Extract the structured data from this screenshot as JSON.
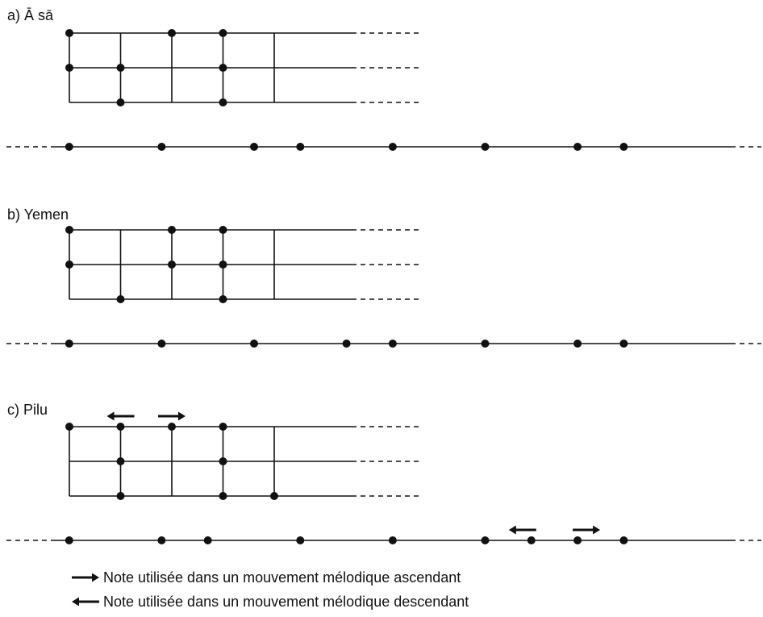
{
  "colors": {
    "ink": "#111111",
    "background": "#ffffff"
  },
  "sections": [
    {
      "label": "a) Ā sā",
      "grid": {
        "columns": 5,
        "rows": 3,
        "dots": [
          {
            "col": 0,
            "row": 0
          },
          {
            "col": 0,
            "row": 1
          },
          {
            "col": 1,
            "row": 1
          },
          {
            "col": 1,
            "row": 2
          },
          {
            "col": 2,
            "row": 0
          },
          {
            "col": 3,
            "row": 0
          },
          {
            "col": 3,
            "row": 1
          },
          {
            "col": 3,
            "row": 2
          }
        ],
        "arrows": []
      },
      "scale": {
        "dots": [
          1,
          3,
          5,
          6,
          8,
          10,
          12,
          13
        ],
        "arrows": []
      }
    },
    {
      "label": "b) Yemen",
      "grid": {
        "columns": 5,
        "rows": 3,
        "dots": [
          {
            "col": 0,
            "row": 0
          },
          {
            "col": 0,
            "row": 1
          },
          {
            "col": 1,
            "row": 2
          },
          {
            "col": 2,
            "row": 0
          },
          {
            "col": 2,
            "row": 1
          },
          {
            "col": 3,
            "row": 0
          },
          {
            "col": 3,
            "row": 1
          },
          {
            "col": 3,
            "row": 2
          }
        ],
        "arrows": []
      },
      "scale": {
        "dots": [
          1,
          3,
          5,
          7,
          8,
          10,
          12,
          13
        ],
        "arrows": []
      }
    },
    {
      "label": "c) Pilu",
      "grid": {
        "columns": 5,
        "rows": 3,
        "dots": [
          {
            "col": 0,
            "row": 0
          },
          {
            "col": 1,
            "row": 0
          },
          {
            "col": 1,
            "row": 1
          },
          {
            "col": 1,
            "row": 2
          },
          {
            "col": 2,
            "row": 0
          },
          {
            "col": 3,
            "row": 0
          },
          {
            "col": 3,
            "row": 1
          },
          {
            "col": 3,
            "row": 2
          },
          {
            "col": 4,
            "row": 2
          }
        ],
        "arrows": [
          {
            "col": 1,
            "direction": "left"
          },
          {
            "col": 2,
            "direction": "right"
          }
        ]
      },
      "scale": {
        "dots": [
          1,
          3,
          4,
          6,
          8,
          10,
          11,
          12,
          13
        ],
        "arrows": [
          {
            "index": 11,
            "direction": "left"
          },
          {
            "index": 12,
            "direction": "right"
          }
        ]
      }
    }
  ],
  "legend": [
    {
      "direction": "right",
      "text": "Note utilisée dans un mouvement mélodique ascendant"
    },
    {
      "direction": "left",
      "text": "Note utilisée dans un mouvement mélodique descendant"
    }
  ]
}
